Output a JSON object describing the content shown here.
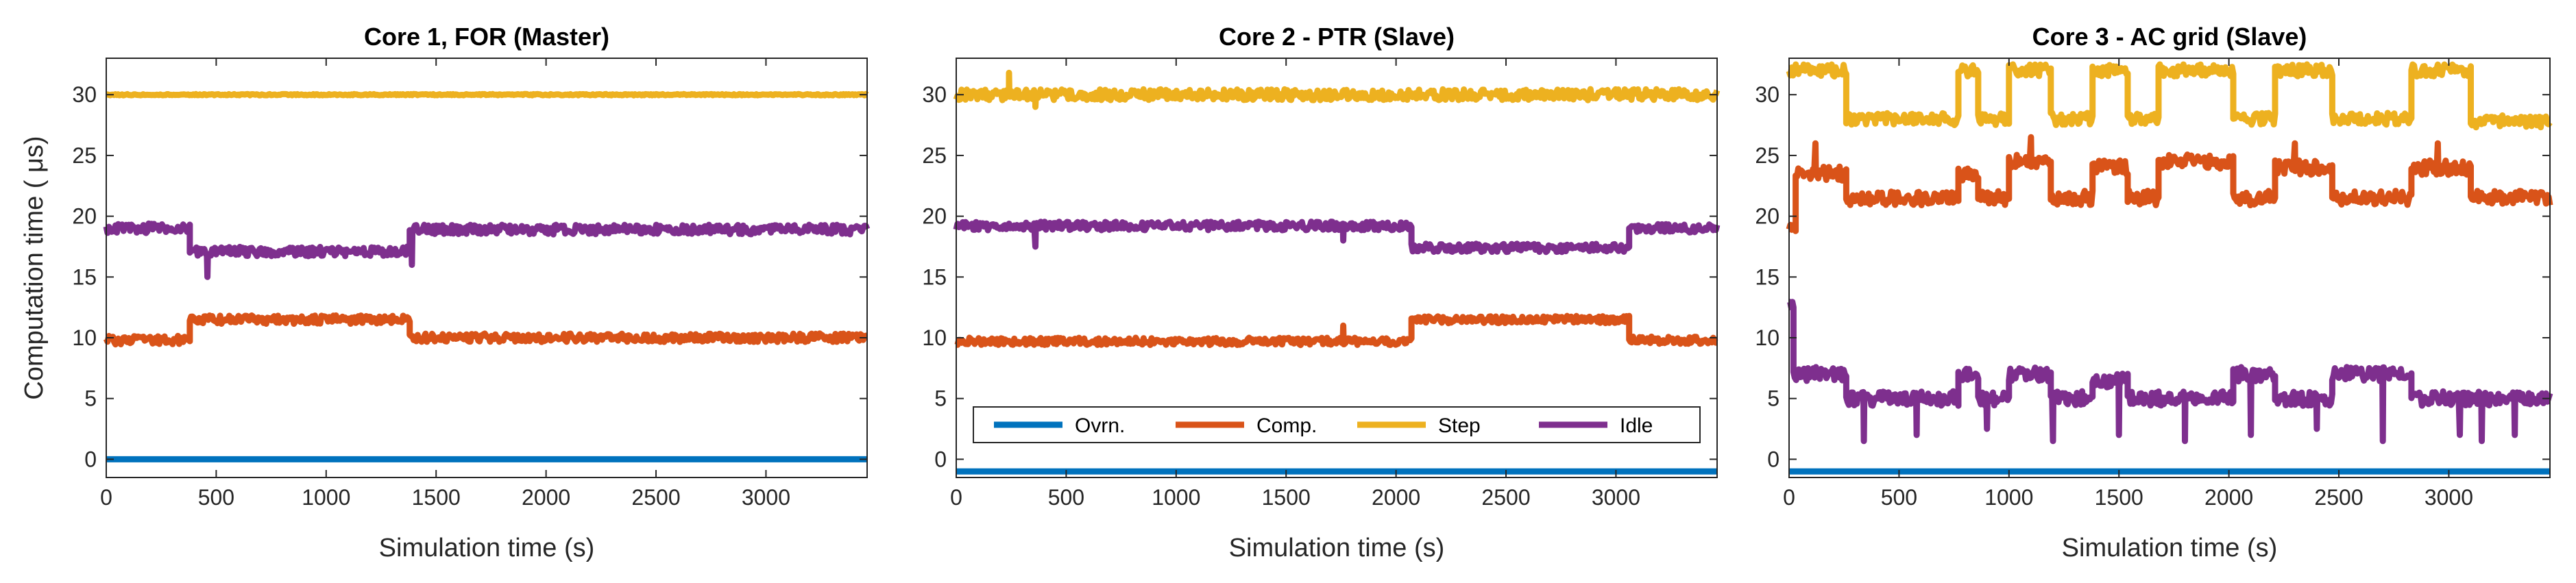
{
  "series_names": [
    "Ovrn.",
    "Comp.",
    "Step",
    "Idle"
  ],
  "series_colors": [
    "#0072BD",
    "#D95319",
    "#EDB120",
    "#7E2F8E"
  ],
  "ylabel": "Computation time ( μs)",
  "xlabel": "Simulation time (s)",
  "chart_data": [
    {
      "type": "line",
      "title": "Core 1, FOR (Master)",
      "xlabel": "Simulation time (s)",
      "ylabel": "Computation time ( μs)",
      "xlim": [
        0,
        3460
      ],
      "ylim": [
        -1.5,
        33
      ],
      "xticks": [
        0,
        500,
        1000,
        1500,
        2000,
        2500,
        3000
      ],
      "yticks": [
        0,
        5,
        10,
        15,
        20,
        25,
        30
      ],
      "series": [
        {
          "name": "Ovrn.",
          "segments": [
            [
              0,
              3460,
              0
            ]
          ],
          "noise": 0,
          "spikes": []
        },
        {
          "name": "Comp.",
          "segments": [
            [
              0,
              380,
              9.8
            ],
            [
              380,
              1380,
              11.5
            ],
            [
              1380,
              3460,
              10.0
            ]
          ],
          "noise": 0.35,
          "spikes": []
        },
        {
          "name": "Step",
          "segments": [
            [
              0,
              3460,
              30
            ]
          ],
          "noise": 0.05,
          "spikes": []
        },
        {
          "name": "Idle",
          "segments": [
            [
              0,
              380,
              19.0
            ],
            [
              380,
              1380,
              17.1
            ],
            [
              1380,
              3460,
              18.9
            ]
          ],
          "noise": 0.4,
          "spikes": [
            [
              460,
              15.0
            ],
            [
              1390,
              16.0
            ]
          ]
        }
      ],
      "legend": null
    },
    {
      "type": "line",
      "title": "Core 2 - PTR (Slave)",
      "xlabel": "Simulation time (s)",
      "ylabel": "",
      "xlim": [
        0,
        3460
      ],
      "ylim": [
        -1.5,
        33
      ],
      "xticks": [
        0,
        500,
        1000,
        1500,
        2000,
        2500,
        3000
      ],
      "yticks": [
        0,
        5,
        10,
        15,
        20,
        25,
        30
      ],
      "series": [
        {
          "name": "Ovrn.",
          "segments": [
            [
              0,
              3460,
              -1
            ]
          ],
          "noise": 0,
          "spikes": []
        },
        {
          "name": "Comp.",
          "segments": [
            [
              0,
              2070,
              9.7
            ],
            [
              2070,
              3060,
              11.5
            ],
            [
              3060,
              3460,
              9.8
            ]
          ],
          "noise": 0.3,
          "spikes": [
            [
              1760,
              11.0
            ]
          ]
        },
        {
          "name": "Step",
          "segments": [
            [
              0,
              3460,
              30.0
            ]
          ],
          "noise": 0.45,
          "spikes": [
            [
              240,
              31.8
            ],
            [
              360,
              29.0
            ]
          ]
        },
        {
          "name": "Idle",
          "segments": [
            [
              0,
              2070,
              19.2
            ],
            [
              2070,
              3060,
              17.4
            ],
            [
              3060,
              3460,
              19.0
            ]
          ],
          "noise": 0.35,
          "spikes": [
            [
              360,
              17.5
            ],
            [
              1760,
              18.0
            ]
          ]
        }
      ],
      "legend": {
        "location": "lower",
        "entries": [
          "Ovrn.",
          "Comp.",
          "Step",
          "Idle"
        ]
      }
    },
    {
      "type": "line",
      "title": "Core 3 - AC grid (Slave)",
      "xlabel": "Simulation time (s)",
      "ylabel": "",
      "xlim": [
        0,
        3460
      ],
      "ylim": [
        -1.5,
        33
      ],
      "xticks": [
        0,
        500,
        1000,
        1500,
        2000,
        2500,
        3000
      ],
      "yticks": [
        0,
        5,
        10,
        15,
        20,
        25,
        30
      ],
      "series": [
        {
          "name": "Ovrn.",
          "segments": [
            [
              0,
              3460,
              -1
            ]
          ],
          "noise": 0,
          "spikes": []
        },
        {
          "name": "Comp.",
          "segments": [
            [
              0,
              30,
              19.0
            ],
            [
              30,
              260,
              23.5
            ],
            [
              260,
              770,
              21.5
            ],
            [
              770,
              860,
              23.5
            ],
            [
              860,
              1000,
              21.5
            ],
            [
              1000,
              1190,
              24.5
            ],
            [
              1190,
              1380,
              21.5
            ],
            [
              1380,
              1540,
              24.0
            ],
            [
              1540,
              1680,
              21.5
            ],
            [
              1680,
              2020,
              24.5
            ],
            [
              2020,
              2210,
              21.5
            ],
            [
              2210,
              2470,
              24.0
            ],
            [
              2470,
              2830,
              21.5
            ],
            [
              2830,
              3100,
              24.0
            ],
            [
              3100,
              3460,
              21.5
            ]
          ],
          "noise": 0.6,
          "spikes": [
            [
              120,
              26.0
            ],
            [
              1100,
              26.5
            ],
            [
              2300,
              26.0
            ],
            [
              2950,
              26.0
            ]
          ]
        },
        {
          "name": "Step",
          "segments": [
            [
              0,
              260,
              32.0
            ],
            [
              260,
              770,
              28.0
            ],
            [
              770,
              860,
              32.0
            ],
            [
              860,
              1000,
              28.0
            ],
            [
              1000,
              1190,
              32.0
            ],
            [
              1190,
              1380,
              28.0
            ],
            [
              1380,
              1540,
              32.0
            ],
            [
              1540,
              1680,
              28.0
            ],
            [
              1680,
              2020,
              32.0
            ],
            [
              2020,
              2210,
              28.0
            ],
            [
              2210,
              2470,
              32.0
            ],
            [
              2470,
              2830,
              28.0
            ],
            [
              2830,
              3100,
              32.0
            ],
            [
              3100,
              3460,
              27.8
            ]
          ],
          "noise": 0.5,
          "spikes": []
        },
        {
          "name": "Idle",
          "segments": [
            [
              0,
              20,
              13.0
            ],
            [
              20,
              260,
              7.0
            ],
            [
              260,
              770,
              5.0
            ],
            [
              770,
              860,
              7.0
            ],
            [
              860,
              1000,
              5.0
            ],
            [
              1000,
              1190,
              7.0
            ],
            [
              1190,
              1380,
              5.0
            ],
            [
              1380,
              1540,
              6.5
            ],
            [
              1540,
              1680,
              5.0
            ],
            [
              1680,
              2020,
              5.0
            ],
            [
              2020,
              2210,
              7.0
            ],
            [
              2210,
              2470,
              5.0
            ],
            [
              2470,
              2830,
              7.0
            ],
            [
              2830,
              3100,
              5.0
            ],
            [
              3100,
              3460,
              5.0
            ]
          ],
          "noise": 0.6,
          "spikes": [
            [
              340,
              1.5
            ],
            [
              580,
              2.0
            ],
            [
              900,
              2.5
            ],
            [
              1200,
              1.5
            ],
            [
              1500,
              2.0
            ],
            [
              1800,
              1.5
            ],
            [
              2100,
              2.0
            ],
            [
              2400,
              2.5
            ],
            [
              2700,
              1.5
            ],
            [
              3050,
              2.0
            ],
            [
              3150,
              1.5
            ],
            [
              3300,
              2.0
            ]
          ]
        }
      ],
      "legend": null
    }
  ]
}
